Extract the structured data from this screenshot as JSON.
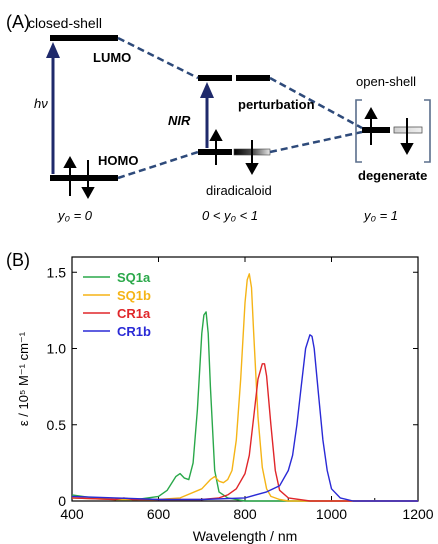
{
  "panel_a": {
    "label": "(A)",
    "closed_shell": "closed-shell",
    "open_shell": "open-shell",
    "lumo": "LUMO",
    "homo": "HOMO",
    "hv": "hν",
    "nir": "NIR",
    "perturbation": "perturbation",
    "diradicaloid": "diradicaloid",
    "degenerate": "degenerate",
    "y_left": "y₀ = 0",
    "y_mid": "0 < y₀ < 1",
    "y_right": "y₀ = 1",
    "colors": {
      "arrow": "#1f2a6b",
      "dash": "#2e4a7a",
      "bracket": "#5a6e8c"
    }
  },
  "panel_b": {
    "label": "(B)",
    "x_ticks": [
      "400",
      "600",
      "800",
      "1000",
      "1200"
    ],
    "y_ticks": [
      "0",
      "0.5",
      "1.0",
      "1.5"
    ],
    "xlabel": "Wavelength / nm",
    "ylabel": "ε / 10⁵ M⁻¹ cm⁻¹"
  },
  "chart_data": {
    "type": "line",
    "xlim": [
      400,
      1200
    ],
    "ylim": [
      0,
      1.6
    ],
    "legend_position": "top-left",
    "xlabel": "Wavelength / nm",
    "ylabel": "ε / 10⁵ M⁻¹ cm⁻¹",
    "series": [
      {
        "name": "SQ1a",
        "color": "#2aa84a",
        "x": [
          400,
          450,
          500,
          550,
          600,
          620,
          640,
          650,
          660,
          670,
          680,
          690,
          700,
          705,
          710,
          715,
          720,
          730,
          740,
          760,
          800,
          900,
          1200
        ],
        "y": [
          0.04,
          0.02,
          0.01,
          0.01,
          0.03,
          0.07,
          0.16,
          0.18,
          0.15,
          0.14,
          0.25,
          0.6,
          1.1,
          1.22,
          1.24,
          1.1,
          0.75,
          0.2,
          0.06,
          0.02,
          0.0,
          0.0,
          0.0
        ]
      },
      {
        "name": "SQ1b",
        "color": "#f5b416",
        "x": [
          400,
          500,
          600,
          650,
          700,
          720,
          730,
          740,
          750,
          760,
          770,
          780,
          790,
          800,
          805,
          810,
          815,
          820,
          830,
          840,
          850,
          860,
          880,
          900,
          1000,
          1200
        ],
        "y": [
          0.02,
          0.01,
          0.01,
          0.02,
          0.08,
          0.14,
          0.16,
          0.13,
          0.12,
          0.14,
          0.2,
          0.4,
          0.8,
          1.3,
          1.45,
          1.49,
          1.4,
          1.1,
          0.55,
          0.22,
          0.08,
          0.03,
          0.01,
          0.0,
          0.0,
          0.0
        ]
      },
      {
        "name": "CR1a",
        "color": "#e0262a",
        "x": [
          400,
          500,
          520,
          540,
          600,
          650,
          700,
          740,
          760,
          780,
          800,
          810,
          820,
          830,
          840,
          845,
          850,
          860,
          870,
          880,
          900,
          950,
          1000,
          1200
        ],
        "y": [
          0.02,
          0.01,
          0.02,
          0.01,
          0.01,
          0.01,
          0.01,
          0.02,
          0.04,
          0.08,
          0.18,
          0.3,
          0.55,
          0.8,
          0.9,
          0.9,
          0.82,
          0.5,
          0.2,
          0.07,
          0.02,
          0.0,
          0.0,
          0.0
        ]
      },
      {
        "name": "CR1b",
        "color": "#2a2ad6",
        "x": [
          400,
          500,
          600,
          700,
          800,
          850,
          880,
          900,
          910,
          920,
          930,
          940,
          950,
          955,
          960,
          970,
          980,
          990,
          1000,
          1020,
          1050,
          1100,
          1200
        ],
        "y": [
          0.03,
          0.02,
          0.01,
          0.01,
          0.02,
          0.06,
          0.1,
          0.2,
          0.3,
          0.5,
          0.75,
          1.0,
          1.09,
          1.08,
          1.0,
          0.7,
          0.4,
          0.2,
          0.08,
          0.02,
          0.0,
          0.0,
          0.0
        ]
      }
    ]
  }
}
